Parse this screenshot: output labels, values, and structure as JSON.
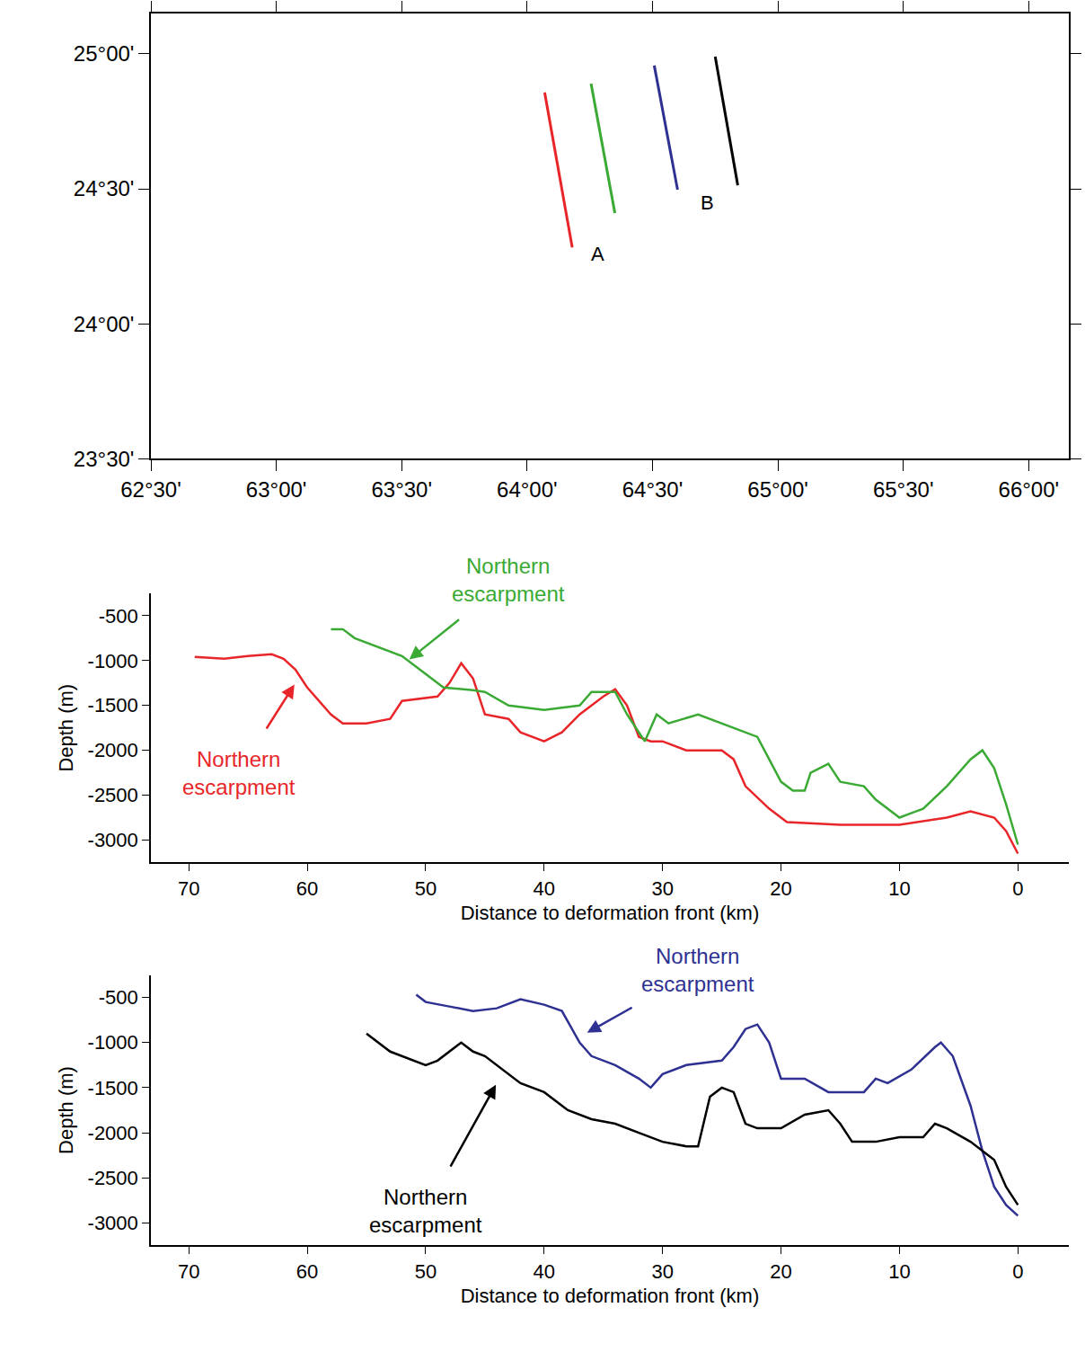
{
  "chart_data": [
    {
      "type": "map",
      "xlim": [
        62.5,
        66.16
      ],
      "ylim": [
        23.5,
        25.15
      ],
      "xticks": [
        {
          "value": 62.5,
          "label": "62°30'"
        },
        {
          "value": 63,
          "label": "63°00'"
        },
        {
          "value": 63.5,
          "label": "63°30'"
        },
        {
          "value": 64,
          "label": "64°00'"
        },
        {
          "value": 64.5,
          "label": "64°30'"
        },
        {
          "value": 65,
          "label": "65°00'"
        },
        {
          "value": 65.5,
          "label": "65°30'"
        },
        {
          "value": 66,
          "label": "66°00'"
        }
      ],
      "yticks": [
        {
          "value": 23.5,
          "label": "23°30'"
        },
        {
          "value": 24,
          "label": "24°00'"
        },
        {
          "value": 24.5,
          "label": "24°30'"
        },
        {
          "value": 25,
          "label": "25°00'"
        }
      ],
      "grid": false,
      "series": [
        {
          "color": "#e8262a",
          "x": [
            64.07,
            64.18
          ],
          "values": [
            24.857,
            24.283
          ]
        },
        {
          "color": "#3aaa35",
          "x": [
            64.255,
            64.35
          ],
          "values": [
            24.89,
            24.41
          ]
        },
        {
          "color": "#2e3192",
          "x": [
            64.507,
            64.6
          ],
          "values": [
            24.957,
            24.497
          ]
        },
        {
          "color": "#000000",
          "x": [
            64.75,
            64.84
          ],
          "values": [
            24.99,
            24.513
          ]
        }
      ],
      "annotations": [
        {
          "text": "A",
          "x": 64.28,
          "y": 24.26
        },
        {
          "text": "B",
          "x": 64.72,
          "y": 24.447
        }
      ]
    },
    {
      "type": "line",
      "xlabel": "Distance to deformation front (km)",
      "ylabel": "Depth (m)",
      "xlim": [
        73.2,
        -4.3
      ],
      "ylim": [
        -3250,
        -250
      ],
      "xticks": [
        70,
        60,
        50,
        40,
        30,
        20,
        10,
        0
      ],
      "yticks": [
        -500,
        -1000,
        -1500,
        -2000,
        -2500,
        -3000
      ],
      "grid": false,
      "series": [
        {
          "color": "#e8262a",
          "x": [
            69.5,
            67,
            65,
            63,
            62,
            61,
            60,
            59,
            58,
            57,
            55,
            53,
            52,
            49,
            48,
            47,
            46,
            45,
            43,
            42,
            40,
            38.5,
            37,
            35,
            34,
            33,
            32,
            31,
            30,
            28,
            25,
            24,
            23,
            21,
            19.5,
            15,
            10,
            6,
            4,
            2,
            1,
            0
          ],
          "values": [
            -960,
            -980,
            -950,
            -930,
            -980,
            -1100,
            -1300,
            -1450,
            -1600,
            -1700,
            -1700,
            -1650,
            -1450,
            -1400,
            -1250,
            -1030,
            -1200,
            -1600,
            -1650,
            -1800,
            -1900,
            -1800,
            -1600,
            -1400,
            -1320,
            -1500,
            -1850,
            -1900,
            -1900,
            -2000,
            -2000,
            -2100,
            -2400,
            -2650,
            -2800,
            -2830,
            -2830,
            -2750,
            -2680,
            -2750,
            -2900,
            -3150
          ]
        },
        {
          "color": "#3aaa35",
          "x": [
            58,
            57,
            56,
            54,
            52,
            50,
            48.5,
            46,
            45,
            43,
            40,
            37,
            36,
            34,
            33,
            32,
            31.5,
            30.5,
            29.5,
            27,
            25,
            22,
            21,
            20,
            19,
            18,
            17.5,
            16,
            15,
            13,
            12,
            10,
            8,
            6,
            4,
            3,
            2,
            1,
            0
          ],
          "values": [
            -650,
            -650,
            -750,
            -850,
            -950,
            -1150,
            -1300,
            -1330,
            -1350,
            -1500,
            -1550,
            -1500,
            -1350,
            -1350,
            -1600,
            -1800,
            -1900,
            -1600,
            -1700,
            -1600,
            -1700,
            -1850,
            -2100,
            -2350,
            -2450,
            -2450,
            -2250,
            -2150,
            -2350,
            -2400,
            -2550,
            -2750,
            -2650,
            -2400,
            -2100,
            -2000,
            -2200,
            -2600,
            -3050
          ]
        }
      ],
      "annotations": [
        {
          "text": "Northern escarpment",
          "color": "#e8262a",
          "x": 61,
          "y": -1250,
          "label_x": 65.8,
          "label_y": -2250
        },
        {
          "text": "Northern escarpment",
          "color": "#3aaa35",
          "x": 51.5,
          "y": -1000,
          "label_x": 43,
          "label_y": -100
        }
      ]
    },
    {
      "type": "line",
      "xlabel": "Distance to deformation front (km)",
      "ylabel": "Depth (m)",
      "xlim": [
        73.2,
        -4.3
      ],
      "ylim": [
        -3250,
        -250
      ],
      "xticks": [
        70,
        60,
        50,
        40,
        30,
        20,
        10,
        0
      ],
      "yticks": [
        -500,
        -1000,
        -1500,
        -2000,
        -2500,
        -3000
      ],
      "grid": false,
      "series": [
        {
          "color": "#2e3192",
          "x": [
            50.8,
            50,
            48,
            46,
            44,
            42,
            40,
            38.5,
            37,
            36,
            34,
            32,
            31,
            30,
            28,
            25,
            24,
            23,
            22,
            21,
            20,
            18,
            16,
            13,
            12,
            11,
            9,
            7,
            6.5,
            5.5,
            4,
            3,
            2,
            1,
            0
          ],
          "values": [
            -470,
            -550,
            -600,
            -650,
            -620,
            -520,
            -580,
            -650,
            -1000,
            -1150,
            -1250,
            -1400,
            -1500,
            -1350,
            -1250,
            -1200,
            -1050,
            -850,
            -800,
            -1000,
            -1400,
            -1400,
            -1550,
            -1550,
            -1400,
            -1450,
            -1300,
            -1050,
            -1000,
            -1150,
            -1700,
            -2200,
            -2600,
            -2800,
            -2920
          ]
        },
        {
          "color": "#000000",
          "x": [
            55,
            53,
            50,
            49,
            47,
            46,
            45,
            44,
            43,
            42,
            40,
            38,
            36,
            34,
            32,
            30,
            28,
            27,
            26,
            25,
            24,
            23,
            22,
            20,
            18,
            16,
            15,
            14,
            12,
            10,
            8,
            7,
            6,
            4,
            2,
            1,
            0
          ],
          "values": [
            -900,
            -1100,
            -1250,
            -1200,
            -1000,
            -1100,
            -1150,
            -1250,
            -1350,
            -1450,
            -1550,
            -1750,
            -1850,
            -1900,
            -2000,
            -2100,
            -2150,
            -2150,
            -1600,
            -1500,
            -1550,
            -1900,
            -1950,
            -1950,
            -1800,
            -1750,
            -1900,
            -2100,
            -2100,
            -2050,
            -2050,
            -1900,
            -1950,
            -2100,
            -2300,
            -2600,
            -2800
          ]
        }
      ],
      "annotations": [
        {
          "text": "Northern escarpment",
          "color": "#2e3192",
          "x": 36.5,
          "y": -900,
          "label_x": 27,
          "label_y": -200
        },
        {
          "text": "Northern escarpment",
          "color": "#000000",
          "x": 44,
          "y": -1450,
          "label_x": 50,
          "label_y": -2870
        }
      ]
    }
  ]
}
